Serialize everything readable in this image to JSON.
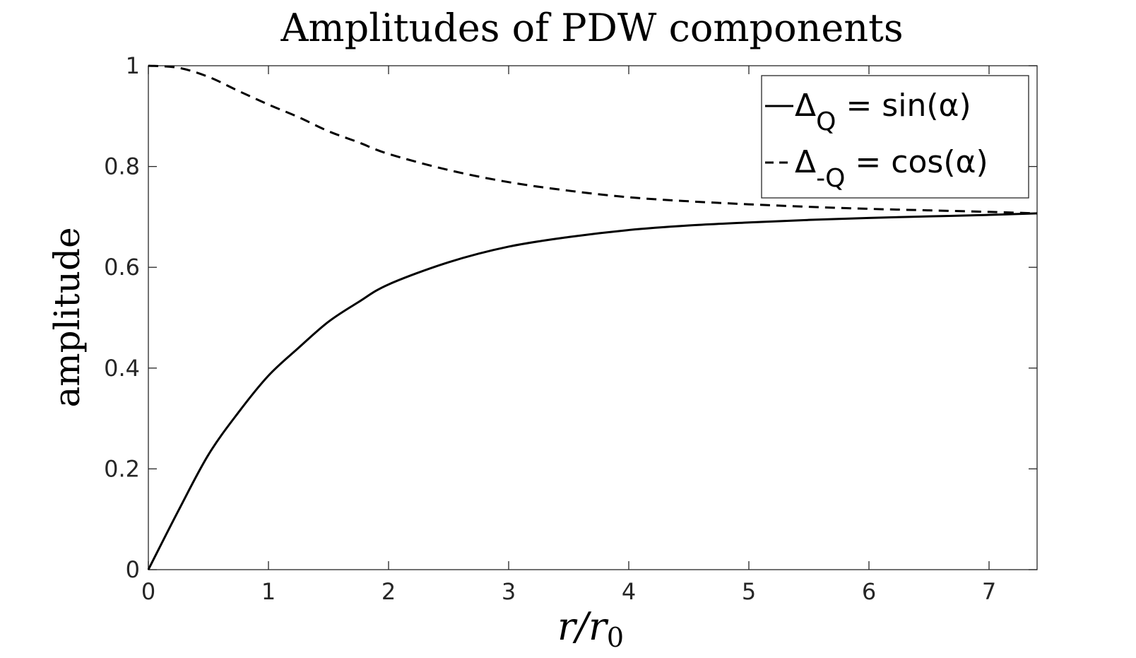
{
  "chart_data": {
    "type": "line",
    "title": "Amplitudes of PDW components",
    "xlabel": "r/r",
    "xlabel_subscript": "0",
    "ylabel": "amplitude",
    "xlim": [
      0,
      7.4
    ],
    "ylim": [
      0,
      1
    ],
    "xticks": [
      0,
      1,
      2,
      3,
      4,
      5,
      6,
      7
    ],
    "yticks": [
      0,
      0.2,
      0.4,
      0.6,
      0.8,
      1
    ],
    "ytick_labels": [
      "0",
      "0.2",
      "0.4",
      "0.6",
      "0.8",
      "1"
    ],
    "grid": false,
    "legend_position": "top-right",
    "line_color": "#000000",
    "x": [
      0,
      0.25,
      0.5,
      0.75,
      1.0,
      1.25,
      1.5,
      1.75,
      2.0,
      2.5,
      3.0,
      3.5,
      4.0,
      4.5,
      5.0,
      5.5,
      6.0,
      6.5,
      7.0,
      7.4
    ],
    "series": [
      {
        "style": "solid",
        "legend_main": "Δ",
        "legend_sub": "Q",
        "legend_rest": " = sin(α)",
        "values": [
          0,
          0.117,
          0.228,
          0.312,
          0.385,
          0.44,
          0.492,
          0.531,
          0.566,
          0.61,
          0.641,
          0.66,
          0.674,
          0.683,
          0.689,
          0.694,
          0.698,
          0.701,
          0.704,
          0.707
        ]
      },
      {
        "style": "dashed",
        "legend_main": "Δ",
        "legend_sub": "-Q",
        "legend_rest": " = cos(α)",
        "values": [
          1.0,
          0.996,
          0.978,
          0.95,
          0.923,
          0.898,
          0.87,
          0.848,
          0.825,
          0.793,
          0.769,
          0.752,
          0.739,
          0.731,
          0.725,
          0.72,
          0.716,
          0.713,
          0.71,
          0.707
        ]
      }
    ]
  }
}
